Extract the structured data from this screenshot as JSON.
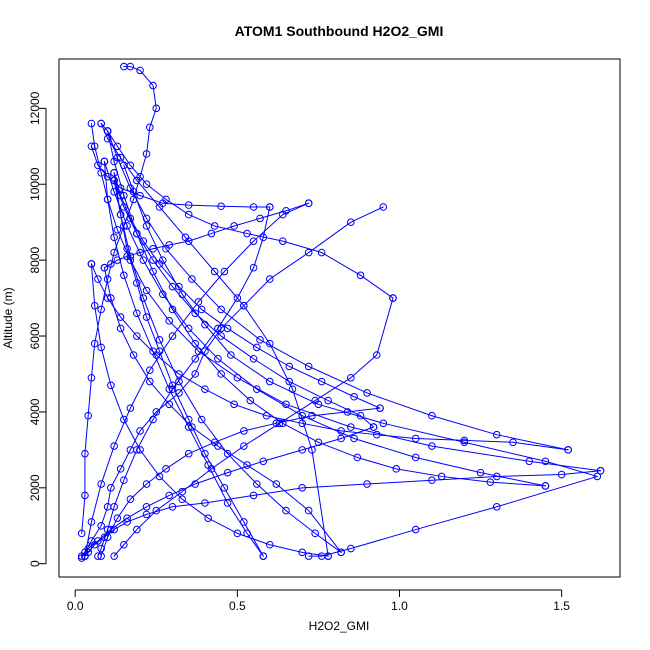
{
  "chart_data": {
    "type": "scatter",
    "title": "ATOM1 Southbound H2O2_GMI",
    "xlabel": "H2O2_GMI",
    "ylabel": "Altitude (m)",
    "xlim": [
      -0.05,
      1.68
    ],
    "ylim": [
      -350,
      13300
    ],
    "x_ticks": [
      0.0,
      0.5,
      1.0,
      1.5
    ],
    "x_tick_labels": [
      "0.0",
      "0.5",
      "1.0",
      "1.5"
    ],
    "y_ticks": [
      0,
      2000,
      4000,
      6000,
      8000,
      10000,
      12000
    ],
    "y_tick_labels": [
      "0",
      "2000",
      "4000",
      "6000",
      "8000",
      "10000",
      "12000"
    ],
    "grid": false,
    "legend": "none",
    "series_color": "#0000ff",
    "series": [
      {
        "profile": 1,
        "x": [
          0.02,
          0.03,
          0.05,
          0.08,
          0.1,
          0.11,
          0.14,
          0.17,
          0.2,
          0.25,
          0.32,
          0.37,
          0.4,
          0.45,
          0.52,
          0.6,
          0.72,
          0.85,
          0.95
        ],
        "y": [
          150,
          300,
          600,
          1000,
          1500,
          2000,
          2500,
          3000,
          3500,
          4000,
          4500,
          5000,
          5600,
          6200,
          6800,
          7500,
          8200,
          9000,
          9400
        ]
      },
      {
        "profile": 2,
        "x": [
          0.72,
          0.76,
          0.85,
          1.05,
          1.3,
          1.61,
          1.45,
          1.2,
          0.95,
          0.75,
          0.6,
          0.48,
          0.4,
          0.33,
          0.27,
          0.22,
          0.18,
          0.15
        ],
        "y": [
          200,
          200,
          400,
          900,
          1500,
          2300,
          2700,
          3200,
          3700,
          4200,
          4800,
          5500,
          6300,
          7100,
          8000,
          8900,
          9800,
          10500
        ]
      },
      {
        "profile": 3,
        "x": [
          0.15,
          0.17,
          0.2,
          0.24,
          0.25,
          0.23,
          0.22,
          0.2,
          0.18,
          0.15,
          0.12,
          0.1,
          0.08,
          0.06,
          0.05,
          0.04,
          0.03,
          0.03,
          0.02
        ],
        "y": [
          13100,
          13100,
          13000,
          12600,
          12000,
          11500,
          10800,
          10200,
          9600,
          8900,
          8200,
          7500,
          6700,
          5800,
          4900,
          3900,
          2900,
          1800,
          800
        ]
      },
      {
        "profile": 4,
        "x": [
          0.02,
          0.04,
          0.06,
          0.09,
          0.12,
          0.16,
          0.22,
          0.3,
          0.4,
          0.55,
          0.7,
          0.9,
          1.1,
          1.3,
          1.5,
          1.62
        ],
        "y": [
          200,
          300,
          500,
          700,
          900,
          1100,
          1300,
          1500,
          1600,
          1800,
          2000,
          2100,
          2200,
          2300,
          2350,
          2450
        ]
      },
      {
        "profile": 5,
        "x": [
          1.62,
          1.4,
          1.1,
          0.85,
          0.65,
          0.5,
          0.38,
          0.29,
          0.22,
          0.17,
          0.13,
          0.1,
          0.08,
          0.06,
          0.05
        ],
        "y": [
          2450,
          2700,
          3100,
          3600,
          4200,
          4900,
          5600,
          6400,
          7200,
          8000,
          8800,
          9600,
          10300,
          11000,
          11600
        ]
      },
      {
        "profile": 6,
        "x": [
          0.05,
          0.07,
          0.1,
          0.14,
          0.2,
          0.27,
          0.35,
          0.45,
          0.55,
          0.6
        ],
        "y": [
          11000,
          10500,
          10200,
          9900,
          9700,
          9500,
          9450,
          9420,
          9400,
          9400
        ]
      },
      {
        "profile": 7,
        "x": [
          0.6,
          0.58,
          0.55,
          0.5,
          0.44,
          0.37,
          0.3,
          0.24,
          0.19,
          0.15,
          0.12,
          0.1,
          0.08,
          0.07
        ],
        "y": [
          9400,
          8600,
          7800,
          7000,
          6200,
          5400,
          4600,
          3800,
          3000,
          2200,
          1500,
          900,
          400,
          200
        ]
      },
      {
        "profile": 8,
        "x": [
          0.12,
          0.15,
          0.19,
          0.25,
          0.33,
          0.42,
          0.52,
          0.63,
          0.74,
          0.85,
          0.93,
          0.98
        ],
        "y": [
          200,
          500,
          900,
          1400,
          1900,
          2500,
          3100,
          3700,
          4300,
          4900,
          5500,
          7000
        ]
      },
      {
        "profile": 9,
        "x": [
          0.98,
          0.88,
          0.76,
          0.64,
          0.53,
          0.43,
          0.35,
          0.28,
          0.22,
          0.17,
          0.13,
          0.1,
          0.08
        ],
        "y": [
          7000,
          7600,
          8200,
          8500,
          8700,
          8900,
          9200,
          9600,
          10000,
          10500,
          11000,
          11400,
          11600
        ]
      },
      {
        "profile": 10,
        "x": [
          0.08,
          0.1,
          0.14,
          0.19,
          0.26,
          0.34,
          0.43,
          0.52,
          0.6,
          0.67,
          0.73,
          0.78
        ],
        "y": [
          11600,
          11200,
          10700,
          10100,
          9400,
          8600,
          7700,
          6800,
          5800,
          4600,
          3000,
          200
        ]
      },
      {
        "profile": 11,
        "x": [
          0.78,
          0.7,
          0.6,
          0.5,
          0.41,
          0.33,
          0.26,
          0.2,
          0.15,
          0.11,
          0.08,
          0.06,
          0.05
        ],
        "y": [
          200,
          300,
          500,
          800,
          1200,
          1700,
          2300,
          3000,
          3800,
          4700,
          5700,
          6800,
          7900
        ]
      },
      {
        "profile": 12,
        "x": [
          0.05,
          0.07,
          0.1,
          0.14,
          0.19,
          0.25,
          0.32,
          0.4,
          0.49,
          0.59,
          0.7,
          0.82,
          0.93,
          1.05,
          1.2,
          1.35,
          1.52
        ],
        "y": [
          7900,
          7500,
          7000,
          6500,
          6000,
          5500,
          5000,
          4600,
          4200,
          3900,
          3700,
          3500,
          3400,
          3300,
          3250,
          3200,
          3000
        ]
      },
      {
        "profile": 13,
        "x": [
          1.52,
          1.3,
          1.1,
          0.9,
          0.72,
          0.57,
          0.45,
          0.36,
          0.28,
          0.22,
          0.17,
          0.13,
          0.1
        ],
        "y": [
          3000,
          3400,
          3900,
          4500,
          5200,
          5900,
          6700,
          7500,
          8300,
          9100,
          9900,
          10700,
          11400
        ]
      },
      {
        "profile": 14,
        "x": [
          0.1,
          0.12,
          0.15,
          0.19,
          0.24,
          0.3,
          0.37,
          0.45,
          0.54,
          0.64,
          0.75,
          0.87,
          0.99,
          1.13,
          1.28,
          1.45
        ],
        "y": [
          11400,
          10600,
          9700,
          8700,
          7700,
          6700,
          5800,
          5000,
          4300,
          3700,
          3200,
          2800,
          2500,
          2300,
          2150,
          2050
        ]
      },
      {
        "profile": 15,
        "x": [
          1.45,
          1.25,
          1.05,
          0.86,
          0.7,
          0.56,
          0.44,
          0.35,
          0.27,
          0.21,
          0.16,
          0.12,
          0.09
        ],
        "y": [
          2050,
          2400,
          2800,
          3300,
          3900,
          4600,
          5400,
          6200,
          7100,
          8000,
          8900,
          9800,
          10600
        ]
      },
      {
        "profile": 16,
        "x": [
          0.09,
          0.1,
          0.12,
          0.15,
          0.19,
          0.24,
          0.29,
          0.35,
          0.41,
          0.47,
          0.53,
          0.58
        ],
        "y": [
          10600,
          9600,
          8600,
          7600,
          6600,
          5600,
          4600,
          3600,
          2600,
          1600,
          800,
          200
        ]
      },
      {
        "profile": 17,
        "x": [
          0.58,
          0.52,
          0.46,
          0.4,
          0.35,
          0.3,
          0.26,
          0.22,
          0.19,
          0.16,
          0.14,
          0.12
        ],
        "y": [
          200,
          1100,
          2000,
          2900,
          3800,
          4700,
          5600,
          6500,
          7400,
          8300,
          9200,
          10100
        ]
      },
      {
        "profile": 18,
        "x": [
          0.12,
          0.15,
          0.19,
          0.24,
          0.3,
          0.37,
          0.45,
          0.55,
          0.66,
          0.78,
          0.88,
          0.92
        ],
        "y": [
          10100,
          9400,
          8700,
          8000,
          7300,
          6600,
          6000,
          5400,
          4800,
          4300,
          3900,
          3600
        ]
      },
      {
        "profile": 19,
        "x": [
          0.92,
          0.82,
          0.7,
          0.58,
          0.47,
          0.37,
          0.29,
          0.22,
          0.16,
          0.11,
          0.07,
          0.04,
          0.03
        ],
        "y": [
          3600,
          3300,
          3000,
          2700,
          2400,
          2100,
          1800,
          1500,
          1200,
          900,
          600,
          400,
          200
        ]
      },
      {
        "profile": 20,
        "x": [
          0.03,
          0.05,
          0.08,
          0.12,
          0.17,
          0.23,
          0.3,
          0.38,
          0.46,
          0.55,
          0.64,
          0.72
        ],
        "y": [
          200,
          1100,
          2100,
          3100,
          4100,
          5100,
          6000,
          6900,
          7700,
          8500,
          9200,
          9500
        ]
      },
      {
        "profile": 21,
        "x": [
          0.72,
          0.65,
          0.57,
          0.49,
          0.42,
          0.35,
          0.29,
          0.24,
          0.2,
          0.16,
          0.13,
          0.11,
          0.09
        ],
        "y": [
          9500,
          9300,
          9100,
          8900,
          8700,
          8500,
          8400,
          8300,
          8200,
          8100,
          8000,
          7900,
          7800
        ]
      },
      {
        "profile": 22,
        "x": [
          0.09,
          0.11,
          0.14,
          0.18,
          0.23,
          0.29,
          0.36,
          0.44,
          0.53,
          0.62,
          0.72,
          0.82
        ],
        "y": [
          7800,
          7000,
          6200,
          5500,
          4800,
          4200,
          3600,
          3100,
          2600,
          2100,
          1400,
          300
        ]
      },
      {
        "profile": 23,
        "x": [
          0.82,
          0.74,
          0.65,
          0.56,
          0.47,
          0.39,
          0.32,
          0.26,
          0.21,
          0.17,
          0.14,
          0.12
        ],
        "y": [
          300,
          800,
          1400,
          2100,
          2900,
          3800,
          4800,
          5900,
          7000,
          8100,
          9200,
          10300
        ]
      },
      {
        "profile": 24,
        "x": [
          0.12,
          0.14,
          0.17,
          0.21,
          0.26,
          0.32,
          0.39,
          0.47,
          0.56,
          0.66,
          0.76,
          0.86,
          0.94
        ],
        "y": [
          10300,
          9700,
          9100,
          8500,
          7900,
          7300,
          6700,
          6200,
          5700,
          5200,
          4800,
          4400,
          4100
        ]
      },
      {
        "profile": 25,
        "x": [
          0.94,
          0.84,
          0.73,
          0.62,
          0.52,
          0.43,
          0.35,
          0.28,
          0.22,
          0.17,
          0.13,
          0.1,
          0.08
        ],
        "y": [
          4100,
          4000,
          3900,
          3700,
          3500,
          3200,
          2900,
          2500,
          2100,
          1700,
          1200,
          700,
          200
        ]
      }
    ]
  }
}
